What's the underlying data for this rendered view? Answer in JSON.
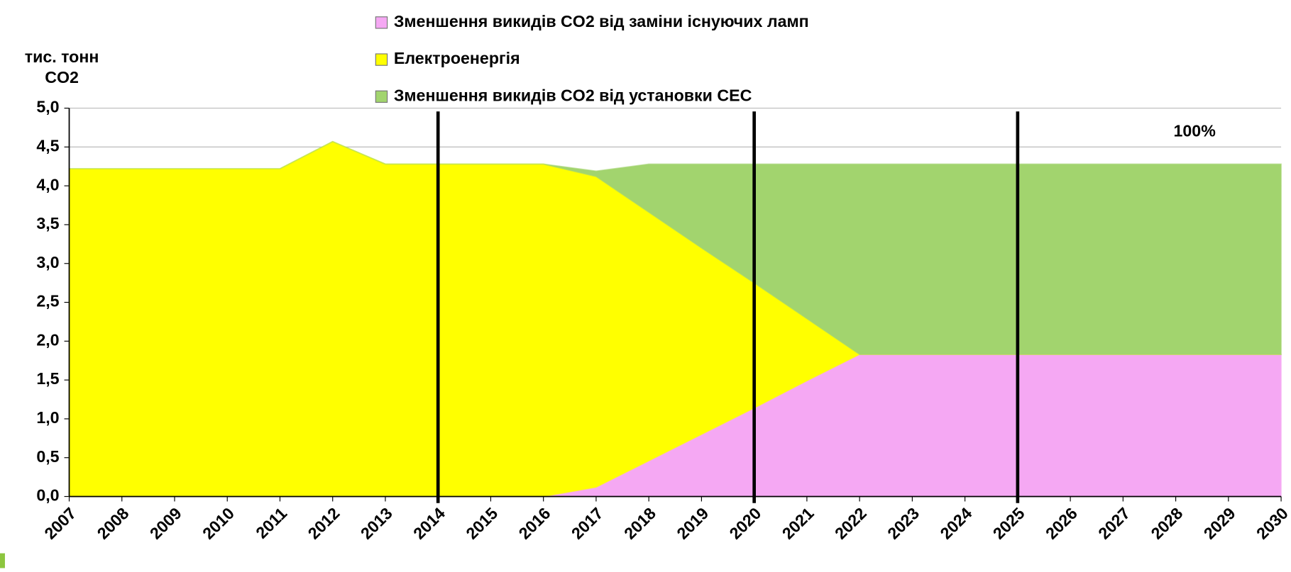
{
  "chart_data": {
    "type": "stacked_area",
    "y_label": [
      "тис. тонн",
      "CO2"
    ],
    "annotation": "100%",
    "x": [
      2007,
      2008,
      2009,
      2010,
      2011,
      2012,
      2013,
      2014,
      2015,
      2016,
      2017,
      2018,
      2019,
      2020,
      2021,
      2022,
      2023,
      2024,
      2025,
      2026,
      2027,
      2028,
      2029,
      2030
    ],
    "xlim": [
      2007,
      2030
    ],
    "xticks": [
      2007,
      2008,
      2009,
      2010,
      2011,
      2012,
      2013,
      2014,
      2015,
      2016,
      2017,
      2018,
      2019,
      2020,
      2021,
      2022,
      2023,
      2024,
      2025,
      2026,
      2027,
      2028,
      2029,
      2030
    ],
    "ylim": [
      0,
      5
    ],
    "yticks": [
      {
        "value": 0,
        "label": "0,0"
      },
      {
        "value": 0.5,
        "label": "0,5"
      },
      {
        "value": 1,
        "label": "1,0"
      },
      {
        "value": 1.5,
        "label": "1,5"
      },
      {
        "value": 2,
        "label": "2,0"
      },
      {
        "value": 2.5,
        "label": "2,5"
      },
      {
        "value": 3,
        "label": "3,0"
      },
      {
        "value": 3.5,
        "label": "3,5"
      },
      {
        "value": 4,
        "label": "4,0"
      },
      {
        "value": 4.5,
        "label": "4,5"
      },
      {
        "value": 5,
        "label": "5,0"
      }
    ],
    "grid": true,
    "vlines": [
      2014,
      2020,
      2025
    ],
    "series": [
      {
        "name": "Зменшення викидів CO2 від заміни існуючих ламп",
        "color": "#f5a8f3",
        "values": [
          0,
          0,
          0,
          0,
          0,
          0,
          0,
          0,
          0,
          0,
          0.12,
          0.46,
          0.8,
          1.14,
          1.49,
          1.83,
          1.83,
          1.83,
          1.83,
          1.83,
          1.83,
          1.83,
          1.83,
          1.83
        ]
      },
      {
        "name": "Електроенергія",
        "color": "#ffff00",
        "values": [
          4.22,
          4.22,
          4.22,
          4.22,
          4.22,
          4.57,
          4.28,
          4.28,
          4.28,
          4.28,
          4.0,
          3.2,
          2.4,
          1.61,
          0.8,
          0,
          0,
          0,
          0,
          0,
          0,
          0,
          0,
          0
        ]
      },
      {
        "name": "Зменшення викидів CO2 від установки СЕС",
        "color": "#a2d46e",
        "values": [
          0,
          0,
          0,
          0,
          0,
          0,
          0,
          0,
          0,
          0,
          0.07,
          0.62,
          1.08,
          1.53,
          1.99,
          2.45,
          2.45,
          2.45,
          2.45,
          2.45,
          2.45,
          2.45,
          2.45,
          2.45
        ]
      }
    ]
  }
}
